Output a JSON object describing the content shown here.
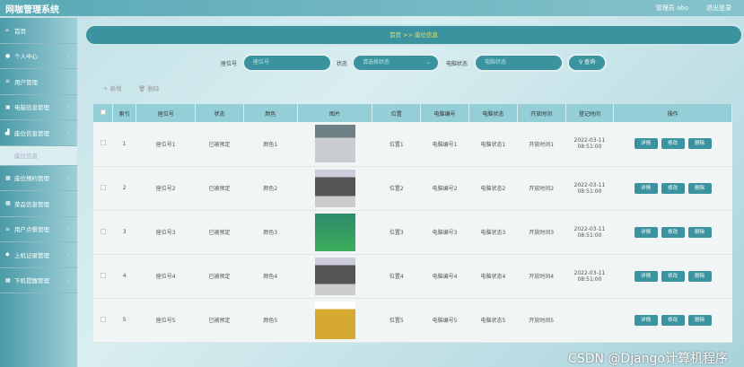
{
  "header": {
    "title": "网咖管理系统",
    "user": "管理员 abo",
    "logout": "退出登录"
  },
  "sidebar": {
    "items": [
      {
        "label": "首页",
        "icon": "home-icon"
      },
      {
        "label": "个人中心",
        "icon": "user-icon"
      },
      {
        "label": "用户管理",
        "icon": "list-icon"
      },
      {
        "label": "电脑信息管理",
        "icon": "computer-icon"
      },
      {
        "label": "座位信息管理",
        "icon": "seat-icon"
      },
      {
        "label": "座位信息",
        "sub": true
      },
      {
        "label": "座位预约管理",
        "icon": "grid-icon"
      },
      {
        "label": "菜品信息管理",
        "icon": "grid-icon"
      },
      {
        "label": "用户点餐管理",
        "icon": "list-icon"
      },
      {
        "label": "上机记录管理",
        "icon": "record-icon"
      },
      {
        "label": "下机提醒管理",
        "icon": "grid-icon"
      }
    ]
  },
  "breadcrumb": {
    "home": "首页",
    "sep": ">>",
    "current": "座位信息"
  },
  "search": {
    "seat_label": "座位号",
    "seat_placeholder": "座位号",
    "status_label": "状态",
    "status_placeholder": "请选择状态",
    "pc_label": "电脑状态",
    "pc_placeholder": "电脑状态",
    "query": "查询"
  },
  "actions": {
    "add": "新增",
    "delete": "删除"
  },
  "table": {
    "headers": [
      "索引",
      "座位号",
      "状态",
      "颜色",
      "图片",
      "位置",
      "电脑编号",
      "电脑状态",
      "开放时间",
      "登记时间",
      "操作"
    ],
    "buttons": {
      "detail": "详情",
      "edit": "修改",
      "delete": "删除"
    },
    "rows": [
      {
        "idx": "1",
        "seat": "座位号1",
        "status": "已被预定",
        "color": "颜色1",
        "pos": "位置1",
        "pc": "电脑编号1",
        "pcs": "电脑状态1",
        "open": "开放时间1",
        "reg": "2022-03-11 08:51:00"
      },
      {
        "idx": "2",
        "seat": "座位号2",
        "status": "已被预定",
        "color": "颜色2",
        "pos": "位置2",
        "pc": "电脑编号2",
        "pcs": "电脑状态2",
        "open": "开放时间2",
        "reg": "2022-03-11 08:51:00"
      },
      {
        "idx": "3",
        "seat": "座位号3",
        "status": "已被预定",
        "color": "颜色3",
        "pos": "位置3",
        "pc": "电脑编号3",
        "pcs": "电脑状态3",
        "open": "开放时间3",
        "reg": "2022-03-11 08:51:00"
      },
      {
        "idx": "4",
        "seat": "座位号4",
        "status": "已被预定",
        "color": "颜色4",
        "pos": "位置4",
        "pc": "电脑编号4",
        "pcs": "电脑状态4",
        "open": "开放时间4",
        "reg": "2022-03-11 08:51:00"
      },
      {
        "idx": "5",
        "seat": "座位号5",
        "status": "已被预定",
        "color": "颜色5",
        "pos": "位置5",
        "pc": "电脑编号5",
        "pcs": "电脑状态5",
        "open": "开放时间5",
        "reg": ""
      }
    ]
  },
  "watermark": "CSDN @Django计算机程序"
}
